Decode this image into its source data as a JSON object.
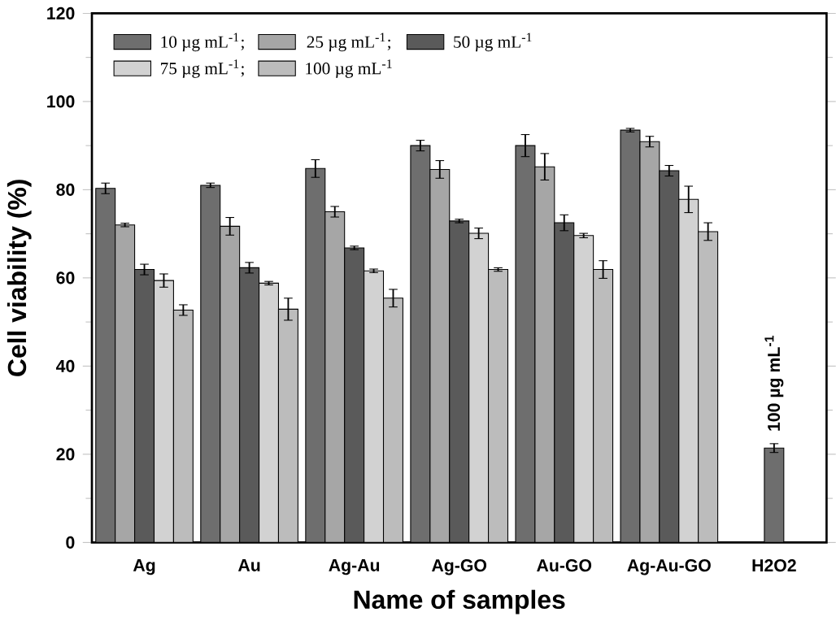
{
  "chart_data": {
    "type": "bar",
    "xlabel": "Name of samples",
    "ylabel": "Cell viability (%)",
    "categories": [
      "Ag",
      "Au",
      "Ag-Au",
      "Ag-GO",
      "Au-GO",
      "Ag-Au-GO",
      "H2O2"
    ],
    "series": [
      {
        "name": "10 µg mL$^{-1}$;",
        "color": "#6e6e6e",
        "values": [
          80.3,
          81,
          84.8,
          90,
          90,
          93.5,
          null
        ],
        "errors": [
          1.2,
          0.5,
          2,
          1.2,
          2.5,
          0.4,
          null
        ]
      },
      {
        "name": "25 µg mL$^{-1}$;",
        "color": "#a6a6a6",
        "values": [
          72,
          71.7,
          75,
          84.6,
          85.2,
          90.9,
          null
        ],
        "errors": [
          0.4,
          2,
          1.2,
          2,
          3,
          1.2,
          null
        ]
      },
      {
        "name": "50 µg mL$^{-1}$",
        "color": "#5a5a5a",
        "values": [
          61.9,
          62.3,
          66.8,
          72.9,
          72.5,
          84.3,
          null
        ],
        "errors": [
          1.2,
          1.2,
          0.4,
          0.4,
          1.8,
          1.2,
          null
        ]
      },
      {
        "name": "75 µg mL$^{-1}$;",
        "color": "#d2d2d2",
        "values": [
          59.4,
          58.8,
          61.6,
          70.1,
          69.6,
          77.8,
          null
        ],
        "errors": [
          1.5,
          0.4,
          0.4,
          1.2,
          0.5,
          3,
          null
        ]
      },
      {
        "name": "100 µg mL$^{-1}$",
        "color": "#bcbcbc",
        "values": [
          52.7,
          52.9,
          55.4,
          61.9,
          61.9,
          70.5,
          null
        ],
        "errors": [
          1.2,
          2.5,
          2,
          0.4,
          2,
          2,
          null
        ]
      },
      {
        "color": "#6e6e6e",
        "values": [
          null,
          null,
          null,
          null,
          null,
          null,
          21.4
        ],
        "errors": [
          null,
          null,
          null,
          null,
          null,
          null,
          1
        ]
      }
    ],
    "ylim": [
      0,
      120
    ],
    "yticks": [
      0,
      20,
      40,
      60,
      80,
      100,
      120
    ],
    "legend": "top left",
    "annotations": [
      {
        "text": "100 µg mL$^{-1}$",
        "x": "H2O2",
        "y": 21.4
      }
    ]
  }
}
